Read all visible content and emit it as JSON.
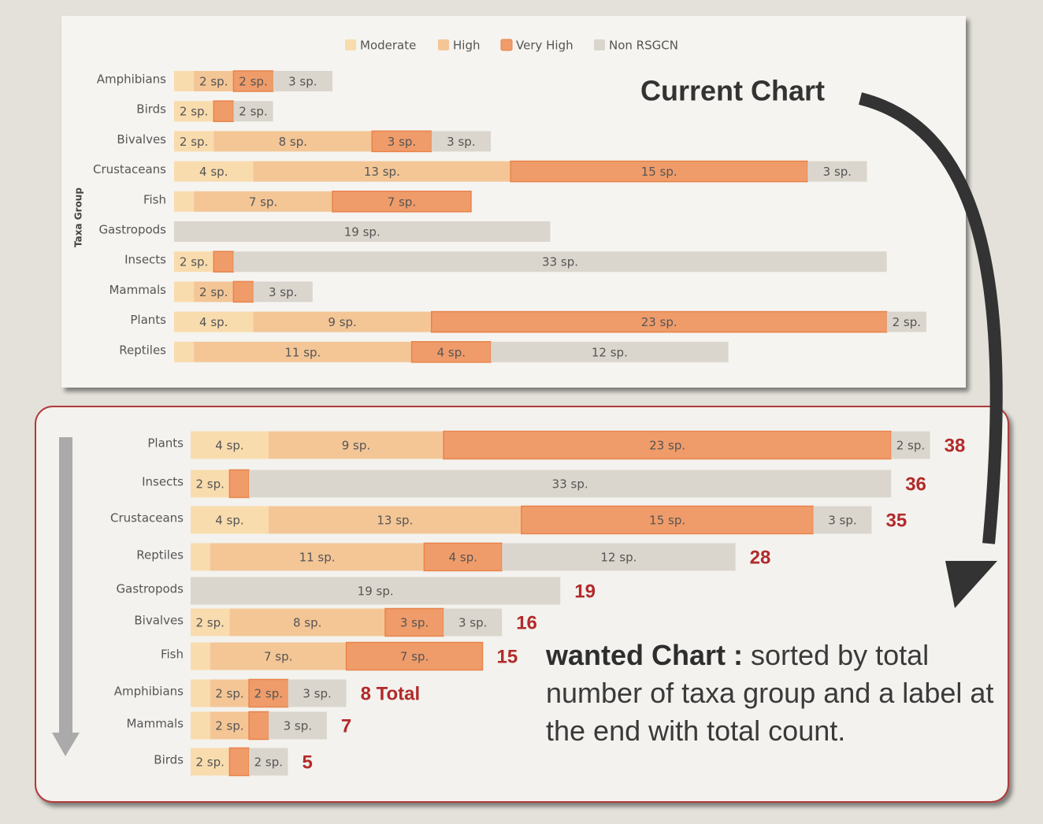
{
  "annotations": {
    "current": "Current Chart",
    "wanted_bold": "wanted Chart :",
    "wanted_text": "sorted by total number of taxa group and a label at the end with total count."
  },
  "chart_data": [
    {
      "type": "stacked-bar",
      "orientation": "horizontal",
      "y_label": "Taxa Group",
      "legend": true,
      "categories": [
        "Amphibians",
        "Birds",
        "Bivalves",
        "Crustaceans",
        "Fish",
        "Gastropods",
        "Insects",
        "Mammals",
        "Plants",
        "Reptiles"
      ],
      "series": [
        {
          "name": "Moderate",
          "color": "#f9dcae",
          "values": [
            1,
            2,
            2,
            4,
            1,
            0,
            2,
            1,
            4,
            1
          ],
          "value_labels": [
            null,
            "2 sp.",
            "2 sp.",
            "4 sp.",
            null,
            null,
            "2 sp.",
            null,
            "4 sp.",
            null
          ]
        },
        {
          "name": "High",
          "color": "#f4c696",
          "values": [
            2,
            0,
            8,
            13,
            7,
            0,
            0,
            2,
            9,
            11
          ],
          "value_labels": [
            "2 sp.",
            null,
            "8 sp.",
            "13 sp.",
            "7 sp.",
            null,
            null,
            "2 sp.",
            "9 sp.",
            "11 sp."
          ]
        },
        {
          "name": "Very High",
          "color": "#ef9c6a",
          "values": [
            2,
            1,
            3,
            15,
            7,
            0,
            1,
            1,
            23,
            4
          ],
          "value_labels": [
            "2 sp.",
            null,
            "3 sp.",
            "15 sp.",
            "7 sp.",
            null,
            null,
            null,
            "23 sp.",
            "4 sp."
          ]
        },
        {
          "name": "Non RSGCN",
          "color": "#dbd6cd",
          "values": [
            3,
            2,
            3,
            3,
            0,
            19,
            33,
            3,
            2,
            12
          ],
          "value_labels": [
            "3 sp.",
            "2 sp.",
            "3 sp.",
            "3 sp.",
            null,
            "19 sp.",
            "33 sp.",
            "3 sp.",
            "2 sp.",
            "12 sp."
          ]
        }
      ]
    },
    {
      "type": "stacked-bar",
      "orientation": "horizontal",
      "categories": [
        "Plants",
        "Insects",
        "Crustaceans",
        "Reptiles",
        "Gastropods",
        "Bivalves",
        "Fish",
        "Amphibians",
        "Mammals",
        "Birds"
      ],
      "series": [
        {
          "color": "#f9dcae",
          "values": [
            4,
            2,
            4,
            1,
            0,
            2,
            1,
            1,
            1,
            2
          ],
          "value_labels": [
            "4 sp.",
            "2 sp.",
            "4 sp.",
            null,
            null,
            "2 sp.",
            null,
            null,
            null,
            "2 sp."
          ]
        },
        {
          "color": "#f4c696",
          "values": [
            9,
            0,
            13,
            11,
            0,
            8,
            7,
            2,
            2,
            0
          ],
          "value_labels": [
            "9 sp.",
            null,
            "13 sp.",
            "11 sp.",
            null,
            "8 sp.",
            "7 sp.",
            "2 sp.",
            "2 sp.",
            null
          ]
        },
        {
          "color": "#ef9c6a",
          "values": [
            23,
            1,
            15,
            4,
            0,
            3,
            7,
            2,
            1,
            1
          ],
          "value_labels": [
            "23 sp.",
            null,
            "15 sp.",
            "4 sp.",
            null,
            "3 sp.",
            "7 sp.",
            "2 sp.",
            null,
            null
          ]
        },
        {
          "color": "#dbd6cd",
          "values": [
            2,
            33,
            3,
            12,
            19,
            3,
            0,
            3,
            3,
            2
          ],
          "value_labels": [
            "2 sp.",
            "33 sp.",
            "3 sp.",
            "12 sp.",
            "19 sp.",
            "3 sp.",
            null,
            "3 sp.",
            "3 sp.",
            "2 sp."
          ]
        }
      ],
      "totals": [
        38,
        36,
        35,
        28,
        19,
        16,
        15,
        8,
        7,
        5
      ],
      "total_labels": [
        "38",
        "36",
        "35",
        "28",
        "19",
        "16",
        "15",
        "8 Total",
        "7",
        "5"
      ],
      "total_color": "#b22a2a"
    }
  ]
}
